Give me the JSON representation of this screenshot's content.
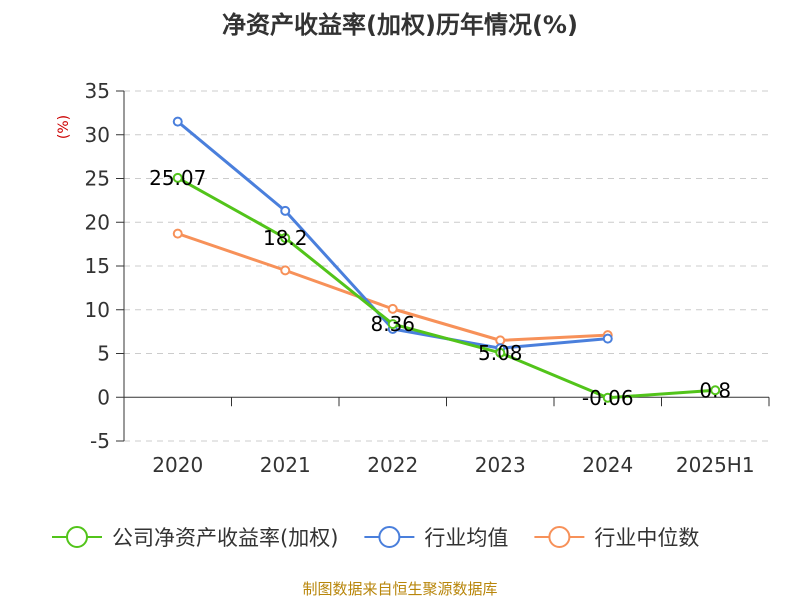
{
  "chart_data": {
    "type": "line",
    "title": "净资产收益率(加权)历年情况(%)",
    "ylabel": "(%)",
    "xlabel": "",
    "categories": [
      "2020",
      "2021",
      "2022",
      "2023",
      "2024",
      "2025H1"
    ],
    "ylim": [
      -5,
      35
    ],
    "yticks": [
      35,
      30,
      25,
      20,
      15,
      10,
      5,
      0,
      -5
    ],
    "grid": true,
    "legend_position": "bottom",
    "series": [
      {
        "name": "公司净资产收益率(加权)",
        "color": "#52c41a",
        "values": [
          25.07,
          18.2,
          8.36,
          5.08,
          -0.06,
          0.8
        ],
        "labels": [
          "25.07",
          "18.2",
          "8.36",
          "5.08",
          "-0.06",
          "0.8"
        ]
      },
      {
        "name": "行业均值",
        "color": "#4a7fdc",
        "values": [
          31.5,
          21.3,
          7.8,
          5.6,
          6.7,
          null
        ]
      },
      {
        "name": "行业中位数",
        "color": "#f79159",
        "values": [
          18.7,
          14.5,
          10.1,
          6.5,
          7.1,
          null
        ]
      }
    ]
  },
  "source": "制图数据来自恒生聚源数据库"
}
